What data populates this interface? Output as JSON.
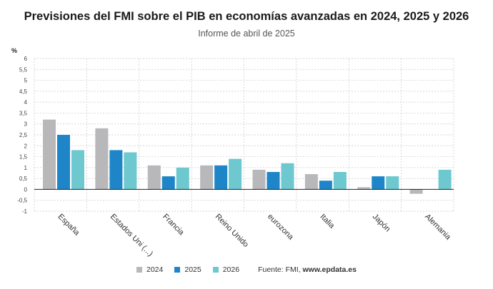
{
  "title": "Previsiones del FMI sobre el PIB en economías avanzadas en 2024, 2025 y 2026",
  "subtitle": "Informe de abril de 2025",
  "source_prefix": "Fuente: FMI, ",
  "source_site": "www.epdata.es",
  "chart_data": {
    "type": "bar",
    "ylabel": "%",
    "ylim": [
      -1,
      6
    ],
    "ytick_step": 0.5,
    "yticks": [
      "6",
      "5,5",
      "5",
      "4,5",
      "4",
      "3,5",
      "3",
      "2,5",
      "2",
      "1,5",
      "1",
      "0,5",
      "0",
      "-0,5",
      "-1"
    ],
    "grid": true,
    "legend_position": "bottom",
    "categories": [
      "España",
      "Estados Uni (...)",
      "Francia",
      "Reino Unido",
      "eurozona",
      "Italia",
      "Japón",
      "Alemania"
    ],
    "series": [
      {
        "name": "2024",
        "color": "#b8b8bb",
        "values": [
          3.2,
          2.8,
          1.1,
          1.1,
          0.9,
          0.7,
          0.1,
          -0.2
        ]
      },
      {
        "name": "2025",
        "color": "#1e86c8",
        "values": [
          2.5,
          1.8,
          0.6,
          1.1,
          0.8,
          0.4,
          0.6,
          0.0
        ]
      },
      {
        "name": "2026",
        "color": "#6dc8cf",
        "values": [
          1.8,
          1.7,
          1.0,
          1.4,
          1.2,
          0.8,
          0.6,
          0.9
        ]
      }
    ]
  }
}
